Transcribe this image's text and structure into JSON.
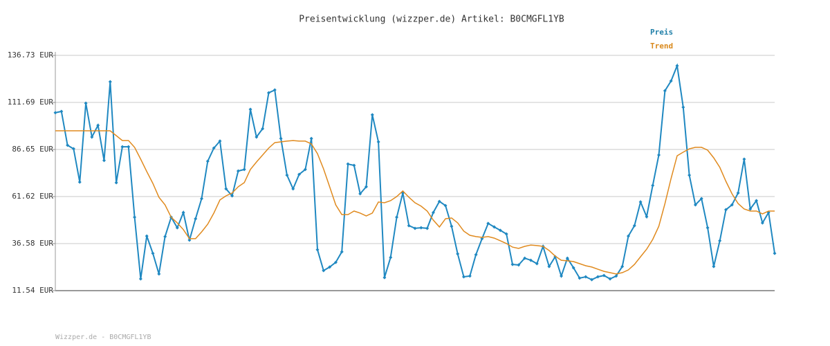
{
  "chart_data": {
    "type": "line",
    "title": "Preisentwicklung (wizzper.de) Artikel: B0CMGFL1YB",
    "footer": "Wizzper.de - B0CMGFL1YB",
    "categories": [
      null,
      null,
      null,
      null,
      null,
      null,
      null,
      null,
      null,
      null,
      null,
      null,
      null,
      null,
      null,
      null,
      null,
      null,
      null,
      null,
      null,
      null,
      null,
      null,
      null,
      null,
      null,
      null,
      null,
      null,
      null,
      null,
      null,
      null,
      null,
      null,
      null,
      null,
      null,
      null,
      null,
      null,
      null,
      null,
      null,
      null,
      null,
      null,
      null,
      null,
      null,
      null,
      null,
      null,
      null,
      null,
      null,
      null,
      null,
      null,
      null,
      null,
      null,
      null,
      null,
      null,
      null,
      null,
      null,
      null,
      null,
      null,
      null,
      null,
      null,
      null,
      null,
      null,
      null,
      null,
      null,
      null,
      null,
      null,
      null,
      null,
      null,
      null,
      null,
      null,
      null,
      null,
      null,
      null,
      null,
      null,
      null,
      null,
      null,
      null,
      null,
      null,
      null,
      null,
      null,
      null,
      null,
      null,
      null,
      null,
      null,
      null,
      null,
      null,
      null,
      null,
      null,
      null,
      null
    ],
    "series": [
      {
        "name": "Preis",
        "color": "#1f88c1",
        "legend_color": "#1f7fa8",
        "markers": true,
        "values": [
          106.2,
          106.9,
          88.9,
          87.0,
          69.3,
          111.3,
          93.3,
          99.5,
          80.8,
          122.7,
          69.0,
          88.1,
          88.1,
          50.6,
          17.8,
          40.6,
          31.4,
          20.4,
          40.3,
          50.6,
          45.0,
          53.1,
          38.4,
          49.8,
          60.5,
          80.4,
          87.4,
          91.1,
          65.7,
          62.0,
          75.2,
          76.0,
          108.0,
          93.3,
          97.7,
          116.8,
          118.3,
          92.5,
          73.0,
          65.7,
          73.4,
          76.0,
          92.5,
          33.3,
          22.2,
          24.1,
          26.6,
          32.2,
          78.9,
          78.2,
          63.1,
          66.8,
          105.1,
          90.7,
          18.5,
          29.2,
          50.6,
          63.5,
          46.1,
          44.7,
          45.0,
          44.7,
          53.1,
          59.0,
          56.8,
          45.8,
          31.1,
          18.9,
          19.3,
          30.7,
          39.2,
          47.3,
          45.4,
          43.6,
          41.7,
          25.5,
          25.2,
          28.8,
          27.7,
          25.9,
          35.1,
          24.4,
          29.6,
          19.3,
          28.8,
          23.7,
          18.2,
          18.9,
          17.4,
          18.9,
          19.6,
          17.8,
          19.3,
          24.4,
          40.6,
          46.1,
          58.7,
          50.9,
          67.5,
          83.7,
          117.9,
          123.1,
          131.2,
          109.1,
          73.0,
          57.2,
          60.5,
          45.0,
          24.4,
          38.1,
          54.6,
          57.2,
          63.5,
          81.5,
          55.0,
          59.4,
          47.6,
          53.1,
          31.4
        ]
      },
      {
        "name": "Trend",
        "color": "#e08a1e",
        "legend_color": "#d9891c",
        "markers": false,
        "values": [
          96.6,
          96.6,
          96.6,
          96.6,
          96.6,
          96.6,
          96.6,
          96.6,
          96.6,
          96.6,
          94.0,
          91.4,
          91.4,
          87.8,
          81.5,
          74.9,
          68.6,
          61.2,
          57.2,
          50.6,
          47.6,
          44.0,
          39.2,
          39.2,
          42.8,
          46.9,
          52.8,
          59.8,
          62.0,
          63.5,
          66.8,
          69.0,
          76.0,
          80.0,
          83.7,
          87.4,
          90.3,
          90.7,
          91.1,
          91.4,
          91.1,
          91.1,
          89.6,
          84.4,
          76.3,
          66.8,
          57.2,
          52.0,
          52.0,
          53.9,
          52.8,
          51.3,
          52.8,
          58.7,
          58.3,
          59.4,
          61.6,
          64.6,
          61.2,
          58.3,
          56.5,
          53.9,
          49.1,
          45.4,
          49.8,
          50.2,
          47.6,
          43.2,
          41.0,
          40.3,
          39.9,
          40.3,
          39.5,
          38.1,
          36.6,
          34.7,
          34.0,
          35.1,
          35.8,
          35.5,
          35.1,
          32.9,
          29.9,
          27.7,
          27.4,
          27.0,
          25.9,
          24.8,
          24.1,
          22.9,
          21.8,
          21.1,
          20.4,
          21.1,
          22.6,
          25.5,
          29.6,
          33.6,
          38.8,
          45.8,
          57.9,
          71.2,
          83.3,
          85.2,
          87.0,
          87.8,
          87.8,
          86.3,
          82.2,
          77.1,
          69.7,
          63.1,
          57.9,
          55.0,
          53.9,
          53.9,
          52.4,
          53.9,
          53.9
        ]
      }
    ],
    "ylim": [
      11.54,
      136.73
    ],
    "yticks": [
      {
        "value": 11.54,
        "label": "11.54 EUR"
      },
      {
        "value": 36.58,
        "label": "36.58 EUR"
      },
      {
        "value": 61.62,
        "label": "61.62 EUR"
      },
      {
        "value": 86.65,
        "label": "86.65 EUR"
      },
      {
        "value": 111.69,
        "label": "111.69 EUR"
      },
      {
        "value": 136.73,
        "label": "136.73 EUR"
      }
    ],
    "grid": true
  }
}
